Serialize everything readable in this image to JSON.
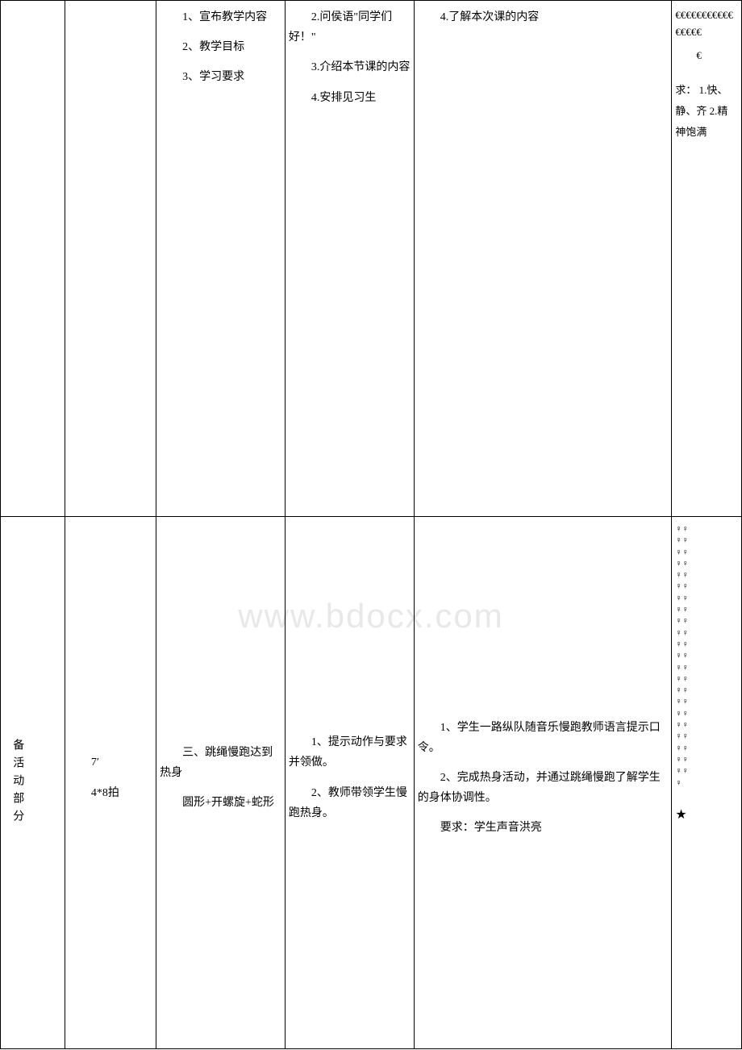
{
  "watermark": "www.bdocx.com",
  "row1": {
    "col3": {
      "p1": "　　1、宣布教学内容",
      "p2": "　　2、教学目标",
      "p3": "　　3、学习要求"
    },
    "col4": {
      "p1": "　　2.问侯语\"同学们好！\"",
      "p2": "　　3.介绍本节课的内容",
      "p3": "　　4.安排见习生"
    },
    "col5": {
      "p1": "　　4.了解本次课的内容"
    },
    "col6": {
      "euros": "€€€€€€€€€€€€€€€€",
      "arrow_indent": "　　€",
      "req_label": "求：",
      "req1": "1.快、静、齐",
      "req2": "2.精神饱满"
    }
  },
  "row2": {
    "col1_label": "备活动部分",
    "col2": {
      "time": "　　7′",
      "beats": "　　4*8拍"
    },
    "col3": {
      "p1": "　　三、跳绳慢跑达到热身",
      "p2": "　　圆形+开螺旋+蛇形"
    },
    "col4": {
      "p1": "　　1、提示动作与要求并领做。",
      "p2": "　　2、教师带领学生慢跑热身。"
    },
    "col5": {
      "p1": "　　1、学生一路纵队随音乐慢跑教师语言提示口令。",
      "p2": "　　2、完成热身活动，并通过跳绳慢跑了解学生的身体协调性。",
      "p3": "　　要求：学生声音洪亮"
    },
    "col6": {
      "symbols_lines": [
        "♀♀",
        "♀♀",
        "♀♀",
        "♀♀",
        "♀♀",
        "♀♀",
        "♀♀",
        "♀♀",
        "♀♀",
        "♀♀",
        "♀♀",
        "♀♀",
        "♀♀",
        "♀♀",
        "♀♀",
        "♀♀",
        "♀♀",
        "♀♀",
        "♀♀",
        "♀♀",
        "♀♀",
        "♀♀",
        "♀"
      ],
      "star": "★"
    }
  }
}
